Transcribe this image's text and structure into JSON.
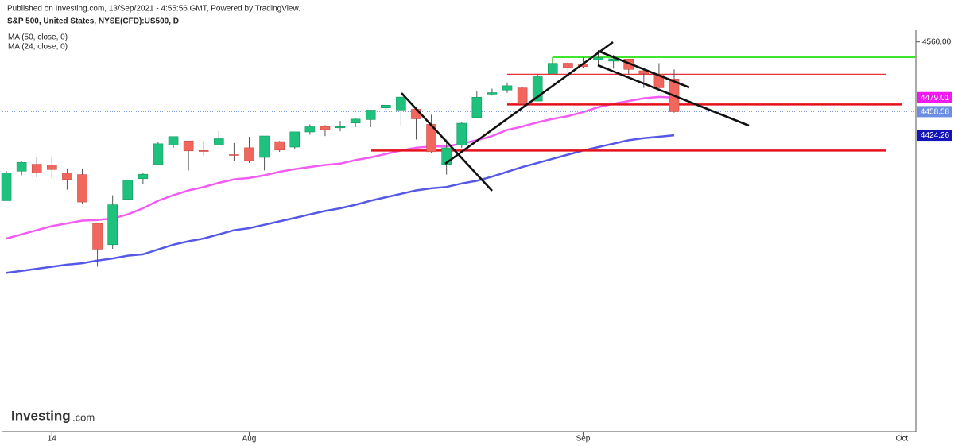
{
  "chart_data": {
    "type": "candlestick",
    "subtitle": "Published on Investing.com, 13/Sep/2021 - 4:55:56 GMT, Powered by TradingView.",
    "title": "S&P 500, United States, NYSE(CFD):US500, D",
    "logo": "Investing",
    "logo_suffix": ".com",
    "categories": [
      null,
      null,
      null,
      "14",
      null,
      null,
      null,
      null,
      null,
      null,
      null,
      null,
      null,
      null,
      null,
      null,
      "Aug",
      null,
      null,
      null,
      null,
      null,
      null,
      null,
      null,
      null,
      null,
      null,
      null,
      null,
      null,
      null,
      null,
      null,
      null,
      null,
      null,
      null,
      "Sep",
      null,
      null,
      null,
      null,
      null,
      null,
      null,
      null,
      null,
      null,
      null,
      null,
      null,
      null,
      null,
      null,
      null,
      null,
      null,
      null,
      "Oct"
    ],
    "open": [
      4329,
      4372,
      4382,
      4381,
      4369,
      4367,
      4296,
      4265,
      4331,
      4361,
      4382,
      4410,
      4416,
      4402,
      4411,
      4396,
      4406,
      4392,
      4415,
      4407,
      4429,
      4437,
      4435,
      4442,
      4447,
      4464,
      4461,
      4462,
      4440,
      4382,
      4410,
      4450,
      4484,
      4490,
      4493,
      4474,
      4514,
      4529,
      4528,
      4534,
      4532,
      4535,
      4518,
      4513,
      4506,
      null,
      null,
      null,
      null,
      null,
      null,
      null,
      null,
      null,
      null,
      null,
      null,
      null,
      null,
      null
    ],
    "high": [
      4372,
      4386,
      4393,
      4393,
      4376,
      4376,
      4296,
      4337,
      4359,
      4370,
      4414,
      4422,
      4416,
      4416,
      4430,
      4413,
      4422,
      4423,
      4416,
      4429,
      4440,
      4439,
      4445,
      4449,
      4461,
      4468,
      4480,
      4462,
      4454,
      4418,
      4444,
      4489,
      4492,
      4501,
      4495,
      4513,
      4537,
      4531,
      4537,
      4545,
      4541,
      4535,
      4521,
      4529,
      4520,
      null,
      null,
      null,
      null,
      null,
      null,
      null,
      null,
      null,
      null,
      null,
      null,
      null,
      null,
      null
    ],
    "low": [
      4329,
      4366,
      4363,
      4362,
      4345,
      4325,
      4233,
      4259,
      4331,
      4353,
      4381,
      4406,
      4373,
      4395,
      4411,
      4387,
      4384,
      4373,
      4400,
      4404,
      4425,
      4423,
      4430,
      4436,
      4436,
      4461,
      4437,
      4418,
      4398,
      4367,
      4406,
      4450,
      4482,
      4486,
      4468,
      4474,
      4514,
      4515,
      4522,
      4524,
      4521,
      4513,
      4493,
      4493,
      4457,
      null,
      null,
      null,
      null,
      null,
      null,
      null,
      null,
      null,
      null,
      null,
      null,
      null,
      null,
      null
    ],
    "close": [
      4369.55,
      4384.63,
      4369.21,
      4374.3,
      4360.03,
      4327.16,
      4258.49,
      4323.06,
      4358.69,
      4367.48,
      4411.79,
      4422.3,
      4401.46,
      4400.64,
      4419.15,
      4395.26,
      4387.16,
      4423.15,
      4402.66,
      4429.1,
      4436.52,
      4432.35,
      4436.75,
      4447.7,
      4460.83,
      4468,
      4479.71,
      4448.08,
      4400.27,
      4405.8,
      4441.67,
      4479.53,
      4486.23,
      4496.19,
      4470,
      4509.37,
      4528.79,
      4522.68,
      4524.09,
      4536.95,
      4535.43,
      4520.03,
      4514.07,
      4493.28,
      4458.58,
      null,
      null,
      null,
      null,
      null,
      null,
      null,
      null,
      null,
      null,
      null,
      null,
      null,
      null,
      null
    ],
    "up_color": "#1ec27d",
    "down_color": "#f2675d",
    "close_label_color": "#6b8de3",
    "series": [
      {
        "name": "MA (50, close, 0)",
        "color": "#5558e6",
        "label_color": "#1414b8",
        "values": [
          4224,
          4227,
          4230,
          4233,
          4236,
          4238,
          4242,
          4245,
          4249,
          4251,
          4258,
          4265,
          4270,
          4274,
          4280,
          4286,
          4289,
          4294,
          4299,
          4304,
          4309,
          4314,
          4318,
          4323,
          4329,
          4334,
          4339,
          4344,
          4347,
          4349,
          4354,
          4358,
          4364,
          4371,
          4378,
          4384,
          4390,
          4396,
          4402,
          4407,
          4412,
          4417,
          4420,
          4422,
          4424.26,
          null,
          null,
          null,
          null,
          null,
          null,
          null,
          null,
          null,
          null,
          null,
          null,
          null,
          null,
          null
        ]
      },
      {
        "name": "MA (24, close, 0)",
        "color": "#f25cf2",
        "label_color": "#f019f0",
        "values": [
          4274,
          4280,
          4286,
          4292,
          4296,
          4300,
          4301,
          4303,
          4309,
          4318,
          4329,
          4337,
          4344,
          4349,
          4355,
          4360,
          4362,
          4366,
          4371,
          4375,
          4378,
          4381,
          4383,
          4388,
          4392,
          4397,
          4402,
          4406,
          4408,
          4408,
          4412,
          4417,
          4423,
          4432,
          4437,
          4443,
          4448,
          4452,
          4458,
          4465,
          4470,
          4474,
          4478,
          4480,
          4479.01,
          null,
          null,
          null,
          null,
          null,
          null,
          null,
          null,
          null,
          null,
          null,
          null,
          null,
          null,
          null
        ]
      }
    ],
    "levels": [
      {
        "value": 4538,
        "color": "#3ee62e"
      },
      {
        "value": 4513,
        "color": "#e8313a"
      },
      {
        "value": 4469,
        "color": "#e5101a"
      },
      {
        "value": 4402,
        "color": "#e5101a"
      }
    ],
    "ylim": [
      3993,
      4577
    ],
    "yticks": [
      {
        "value": 4560,
        "label": "4560.00"
      }
    ]
  }
}
